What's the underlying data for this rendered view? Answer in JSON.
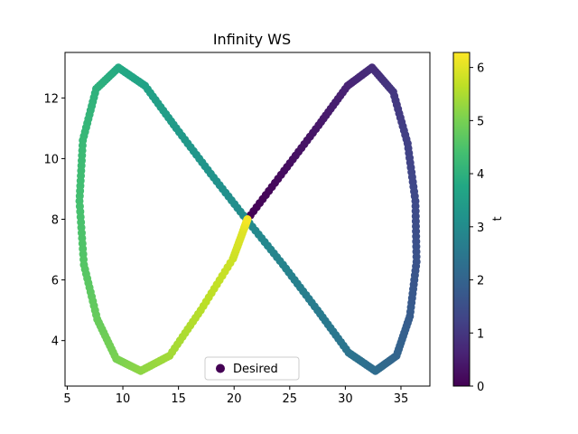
{
  "chart_data": {
    "type": "scatter",
    "title": "Infinity WS",
    "xlabel": "",
    "ylabel": "",
    "xlim": [
      4.8,
      37.6
    ],
    "ylim": [
      2.5,
      13.5
    ],
    "x_ticks": [
      5,
      10,
      15,
      20,
      25,
      30,
      35
    ],
    "y_ticks": [
      4,
      6,
      8,
      10,
      12
    ],
    "grid": false,
    "legend": {
      "position": "lower center",
      "entries": [
        "Desired"
      ]
    },
    "series": [
      {
        "name": "Desired",
        "marker": "circle",
        "color_by": "t",
        "colormap": "viridis",
        "t": [
          0,
          0.2,
          0.4,
          0.6,
          0.8,
          1.0,
          1.2,
          1.4,
          1.6,
          1.8,
          2.0,
          2.2,
          2.4,
          2.6,
          2.8,
          3.0,
          3.2,
          3.4,
          3.6,
          3.8,
          4.0,
          4.2,
          4.4,
          4.6,
          4.8,
          5.0,
          5.2,
          5.4,
          5.6,
          5.8,
          6.0,
          6.2
        ],
        "x": [
          21.2,
          24.5,
          27.6,
          30.2,
          32.4,
          34.3,
          35.6,
          36.3,
          36.4,
          35.8,
          34.6,
          32.7,
          30.3,
          27.5,
          24.4,
          21.1,
          17.9,
          14.8,
          12.0,
          9.6,
          7.6,
          6.4,
          6.1,
          6.5,
          7.7,
          9.4,
          11.6,
          14.2,
          17.0,
          19.9,
          20.9,
          21.2
        ],
        "y": [
          8.0,
          9.6,
          11.1,
          12.4,
          13.0,
          12.2,
          10.5,
          8.6,
          6.6,
          4.8,
          3.5,
          3.0,
          3.6,
          5.0,
          6.5,
          8.0,
          9.5,
          11.0,
          12.4,
          13.0,
          12.3,
          10.6,
          8.6,
          6.5,
          4.7,
          3.4,
          3.0,
          3.5,
          5.0,
          6.7,
          7.7,
          8.0
        ]
      }
    ],
    "colorbar": {
      "label": "t",
      "min": 0,
      "max": 6.2832,
      "ticks": [
        0,
        1,
        2,
        3,
        4,
        5,
        6
      ]
    }
  }
}
